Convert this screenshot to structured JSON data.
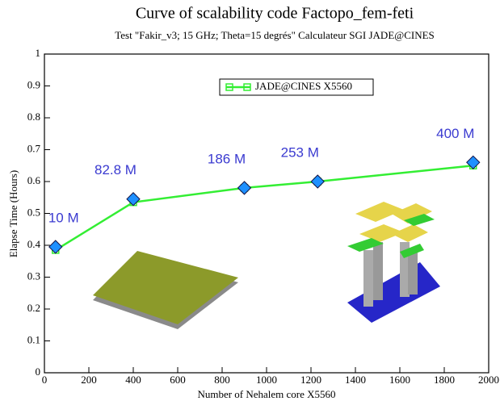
{
  "chart_data": {
    "type": "line",
    "title": "Curve of scalability code Factopo_fem-feti",
    "subtitle": "Test \"Fakir_v3; 15 GHz; Theta=15 degrés\" Calculateur SGI JADE@CINES",
    "x_label": "Number of Nehalem  core X5560",
    "y_label": "Elapse Time (Hours)",
    "x": [
      50,
      400,
      900,
      1230,
      1930
    ],
    "series": [
      {
        "name": "JADE@CINES X5560",
        "color": "#33ee33",
        "marker": "square",
        "values": [
          0.385,
          0.535,
          0.58,
          0.6,
          0.65
        ]
      },
      {
        "color": "#1e90ff",
        "marker": "diamond",
        "values": [
          0.395,
          0.545,
          0.58,
          0.6,
          0.66
        ]
      }
    ],
    "point_labels": [
      "10 M",
      "82.8 M",
      "186 M",
      "253 M",
      "400 M"
    ],
    "xlim": [
      0,
      2000
    ],
    "xticks": [
      0,
      200,
      400,
      600,
      800,
      1000,
      1200,
      1400,
      1600,
      1800,
      2000
    ],
    "ylim": [
      0,
      1
    ],
    "yticks": [
      0,
      0.1,
      0.2,
      0.3,
      0.4,
      0.5,
      0.6,
      0.7,
      0.8,
      0.9,
      1
    ],
    "grid": false
  }
}
